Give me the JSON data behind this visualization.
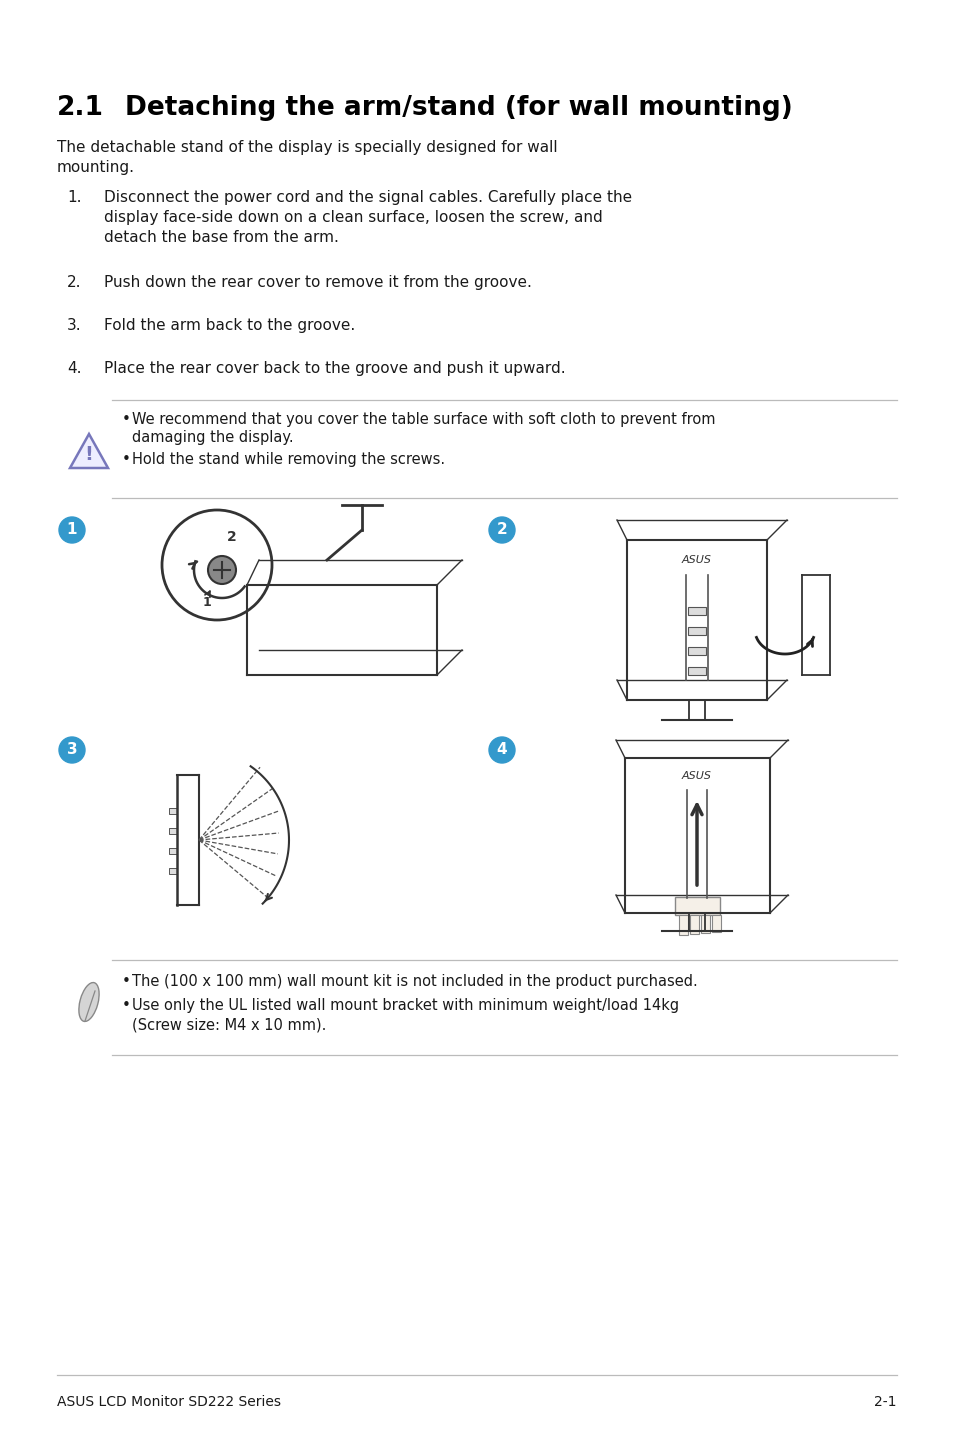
{
  "title_num": "2.1",
  "title_text": "Detaching the arm/stand (for wall mounting)",
  "intro_line1": "The detachable stand of the display is specially designed for wall",
  "intro_line2": "mounting.",
  "steps": [
    [
      "1.",
      "Disconnect the power cord and the signal cables. Carefully place the\n        display face-side down on a clean surface, loosen the screw, and\n        detach the base from the arm."
    ],
    [
      "2.",
      "Push down the rear cover to remove it from the groove."
    ],
    [
      "3.",
      "Fold the arm back to the groove."
    ],
    [
      "4.",
      "Place the rear cover back to the groove and push it upward."
    ]
  ],
  "warn_line1": "We recommend that you cover the table surface with soft cloth to prevent from",
  "warn_line2": "damaging the display.",
  "warn_line3": "Hold the stand while removing the screws.",
  "note_line1": "The (100 x 100 mm) wall mount kit is not included in the product purchased.",
  "note_line2": "Use only the UL listed wall mount bracket with minimum weight/load 14kg",
  "note_line3": "(Screw size: M4 x 10 mm).",
  "footer_left": "ASUS LCD Monitor SD222 Series",
  "footer_right": "2-1",
  "bg_color": "#ffffff",
  "text_color": "#1a1a1a",
  "title_color": "#000000",
  "circle_color": "#3399cc",
  "warn_tri_fill": "#eeeeff",
  "warn_tri_edge": "#7777bb",
  "divider_color": "#bbbbbb"
}
